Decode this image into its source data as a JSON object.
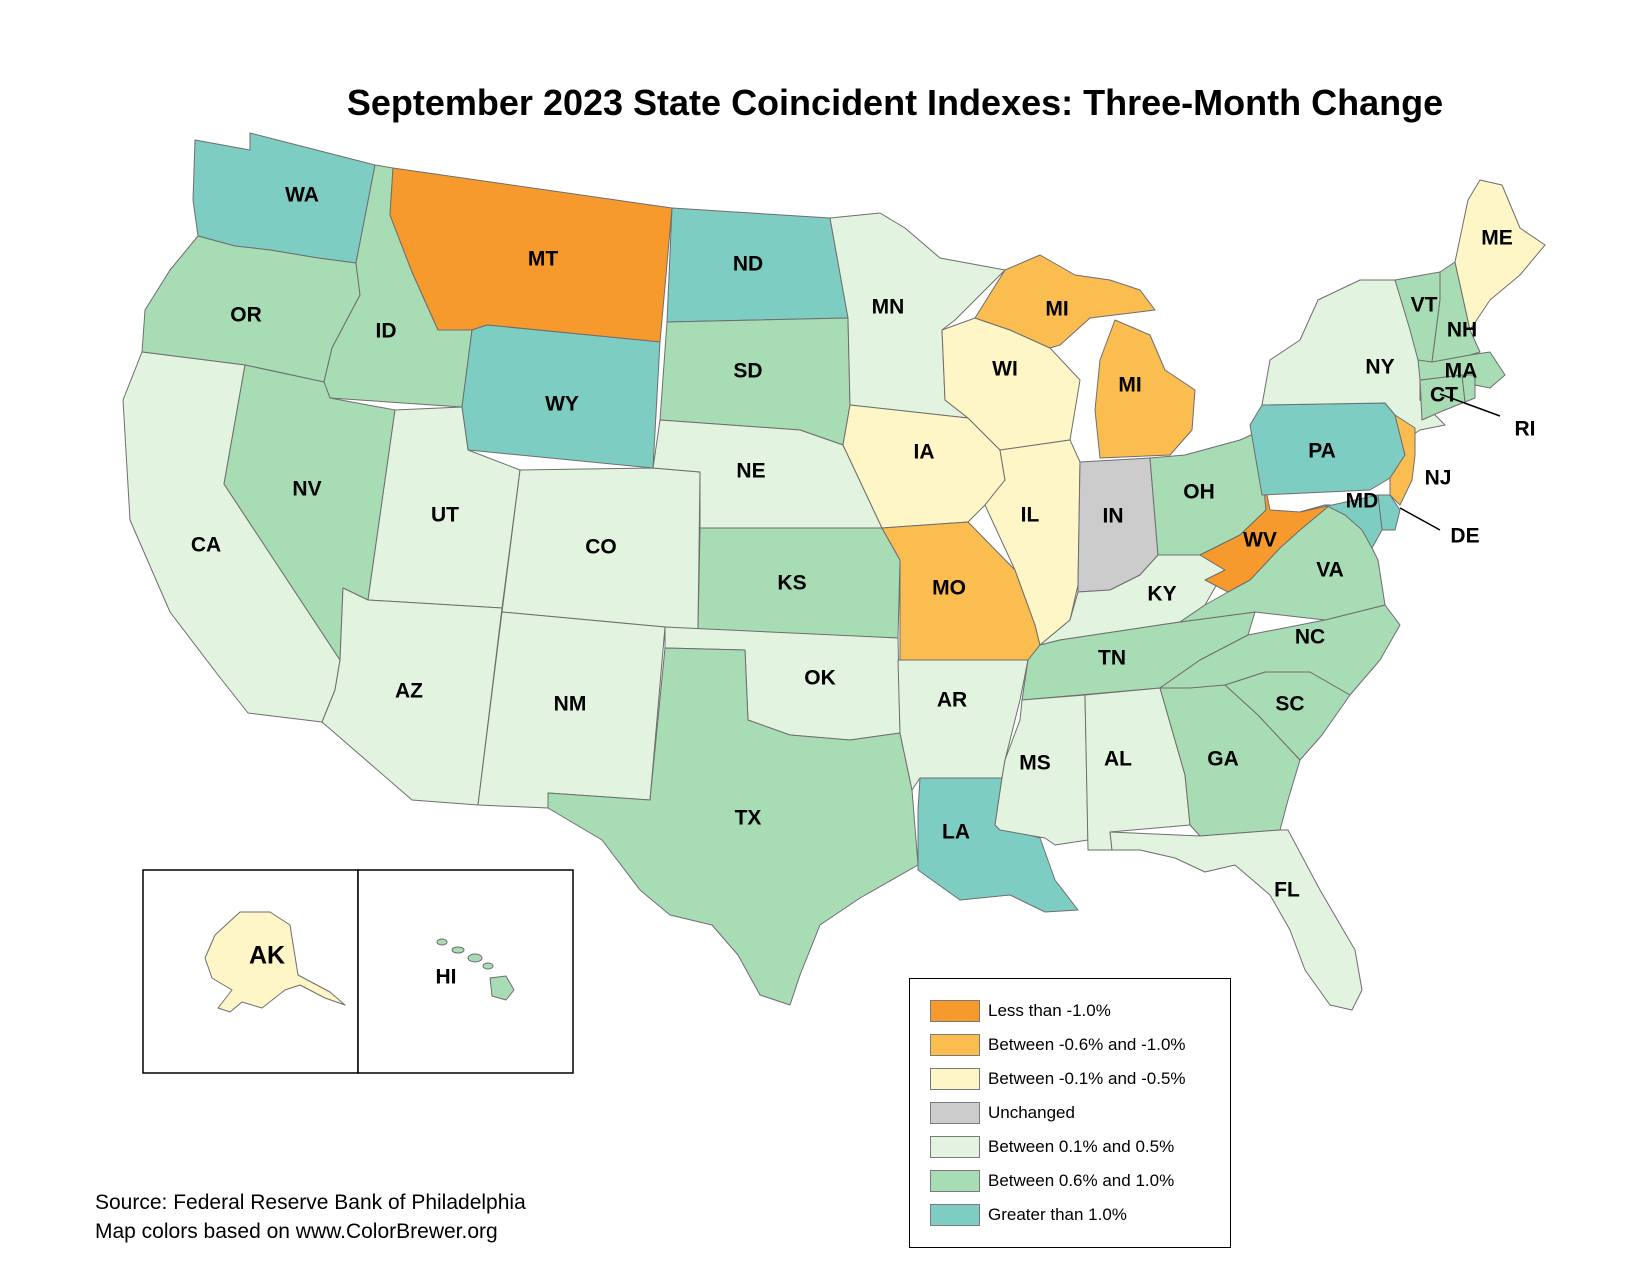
{
  "title": "September 2023 State Coincident Indexes: Three-Month Change",
  "colors": {
    "lt_neg1": "#f79a2e",
    "neg06_10": "#fbbd50",
    "neg01_05": "#fef6c6",
    "unchanged": "#cccccc",
    "pos01_05": "#e2f4df",
    "pos06_10": "#a8dcb5",
    "gt_1": "#7ecdc3"
  },
  "legend": [
    {
      "key": "lt_neg1",
      "label": "Less than -1.0%"
    },
    {
      "key": "neg06_10",
      "label": "Between -0.6% and -1.0%"
    },
    {
      "key": "neg01_05",
      "label": "Between -0.1% and -0.5%"
    },
    {
      "key": "unchanged",
      "label": "Unchanged"
    },
    {
      "key": "pos01_05",
      "label": "Between 0.1% and 0.5%"
    },
    {
      "key": "pos06_10",
      "label": "Between 0.6% and 1.0%"
    },
    {
      "key": "gt_1",
      "label": "Greater than 1.0%"
    }
  ],
  "states": {
    "WA": "gt_1",
    "OR": "pos06_10",
    "CA": "pos01_05",
    "ID": "pos06_10",
    "NV": "pos06_10",
    "MT": "lt_neg1",
    "WY": "gt_1",
    "UT": "pos01_05",
    "AZ": "pos01_05",
    "CO": "pos01_05",
    "NM": "pos01_05",
    "ND": "gt_1",
    "SD": "pos06_10",
    "NE": "pos01_05",
    "KS": "pos06_10",
    "OK": "pos01_05",
    "TX": "pos06_10",
    "MN": "pos01_05",
    "IA": "neg01_05",
    "MO": "neg06_10",
    "AR": "pos01_05",
    "LA": "gt_1",
    "WI": "neg01_05",
    "IL": "neg01_05",
    "MI": "neg06_10",
    "IN": "unchanged",
    "OH": "pos06_10",
    "KY": "pos01_05",
    "TN": "pos06_10",
    "MS": "pos01_05",
    "AL": "pos01_05",
    "GA": "pos06_10",
    "FL": "pos01_05",
    "SC": "pos06_10",
    "NC": "pos06_10",
    "VA": "pos06_10",
    "WV": "lt_neg1",
    "PA": "gt_1",
    "NY": "pos01_05",
    "NJ": "neg06_10",
    "DE": "gt_1",
    "MD": "gt_1",
    "CT": "pos06_10",
    "RI": "pos06_10",
    "MA": "pos06_10",
    "VT": "pos06_10",
    "NH": "pos06_10",
    "ME": "neg01_05",
    "AK": "neg01_05",
    "HI": "pos06_10"
  },
  "labels": {
    "WA": "WA",
    "OR": "OR",
    "CA": "CA",
    "ID": "ID",
    "NV": "NV",
    "MT": "MT",
    "WY": "WY",
    "UT": "UT",
    "AZ": "AZ",
    "CO": "CO",
    "NM": "NM",
    "ND": "ND",
    "SD": "SD",
    "NE": "NE",
    "KS": "KS",
    "OK": "OK",
    "TX": "TX",
    "MN": "MN",
    "IA": "IA",
    "MO": "MO",
    "AR": "AR",
    "LA": "LA",
    "WI": "WI",
    "IL": "IL",
    "MI_UP": "MI",
    "MI": "MI",
    "IN": "IN",
    "OH": "OH",
    "KY": "KY",
    "TN": "TN",
    "MS": "MS",
    "AL": "AL",
    "GA": "GA",
    "FL": "FL",
    "SC": "SC",
    "NC": "NC",
    "VA": "VA",
    "WV": "WV",
    "PA": "PA",
    "NY": "NY",
    "NJ": "NJ",
    "DE": "DE",
    "MD": "MD",
    "CT": "CT",
    "RI": "RI",
    "MA": "MA",
    "VT": "VT",
    "NH": "NH",
    "ME": "ME",
    "AK": "AK",
    "HI": "HI"
  },
  "source_line1": "Source: Federal Reserve Bank of Philadelphia",
  "source_line2": "Map colors based on www.ColorBrewer.org"
}
